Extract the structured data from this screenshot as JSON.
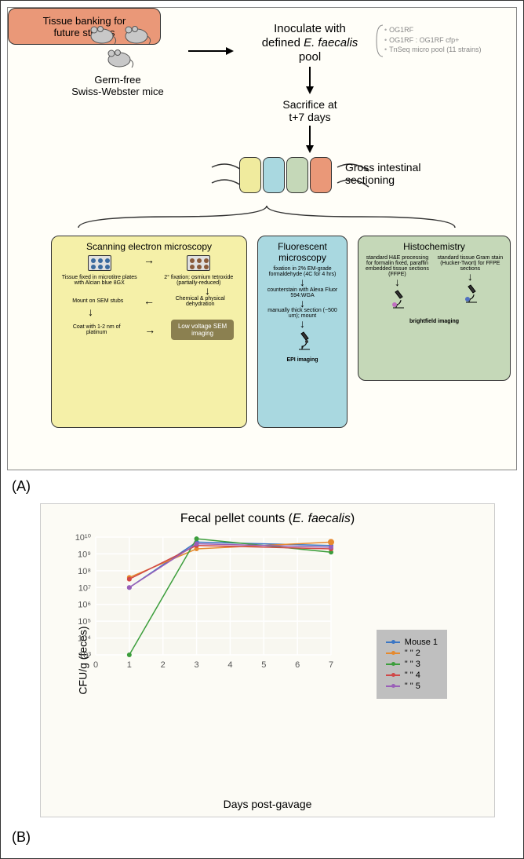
{
  "panelA": {
    "label": "(A)",
    "mice_label": "Germ-free\nSwiss-Webster mice",
    "inoculate": "Inoculate with\ndefined E. faecalis\npool",
    "italic_part": "E. faecalis",
    "pool_options": [
      "OG1RF",
      "OG1RF : OG1RF cfp+",
      "TnSeq micro pool (11 strains)"
    ],
    "sacrifice": "Sacrifice at\nt+7 days",
    "sectioning": "Gross intestinal\nsectioning",
    "section_colors": [
      "#f0eb9e",
      "#a9d8e0",
      "#c5d8b8",
      "#ea9878"
    ],
    "sem": {
      "title": "Scanning electron microscopy",
      "step1": "Tissue fixed in microtitre plates with Alcian blue 8GX",
      "step2": "2° fixation: osmium tetroxide (partially-reduced)",
      "step3": "Chemical & physical dehydration",
      "step4": "Mount on SEM stubs",
      "step5": "Coat with 1-2 nm of platinum",
      "result": "Low voltage SEM imaging",
      "plate_dot_colors": [
        "#3a6a9e",
        "#8a5a3a"
      ]
    },
    "fluor": {
      "title": "Fluorescent microscopy",
      "step1": "fixation in 2% EM-grade formaldehyde (4C for 4 hrs)",
      "step2": "counterstain with Alexa Fluor 594:WGA",
      "step3": "manually thick section (~500 um); mount",
      "result": "EPI imaging"
    },
    "histo": {
      "title": "Histochemistry",
      "col1": "standard H&E processing for formalin fixed, paraffin embedded tissue sections (FFPE)",
      "col2": "standard tissue Gram stain (Hucker-Twort) for FFPE sections",
      "result": "brightfield imaging",
      "scope_dots": [
        "#c070c0",
        "#5070c0"
      ]
    },
    "banking": "Tissue banking for\nfuture studies"
  },
  "panelB": {
    "label": "(B)",
    "chart": {
      "type": "line",
      "title": "Fecal pellet counts (E. faecalis)",
      "title_italic": "E. faecalis",
      "x_label": "Days post-gavage",
      "y_label": "CFU/g (feces)",
      "xlim": [
        0,
        7
      ],
      "xticks": [
        0,
        1,
        2,
        3,
        4,
        5,
        6,
        7
      ],
      "ylim_log": [
        3,
        10
      ],
      "yticks_log": [
        3,
        4,
        5,
        6,
        7,
        8,
        9,
        10
      ],
      "ytick_labels": [
        "10³",
        "10⁴",
        "10⁵",
        "10⁶",
        "10⁷",
        "10⁸",
        "10⁹",
        "10¹⁰"
      ],
      "background_color": "#f8f7f0",
      "grid_color": "#ffffff",
      "series": [
        {
          "name": "Mouse 1",
          "color": "#3b76c4",
          "x": [
            1,
            3,
            7
          ],
          "y_log": [
            7.0,
            9.7,
            9.5
          ]
        },
        {
          "name": "\"   \"   2",
          "color": "#e68a2e",
          "x": [
            1,
            3,
            7
          ],
          "y_log": [
            7.6,
            9.3,
            9.7
          ],
          "end_marker": true
        },
        {
          "name": "\"   \"   3",
          "color": "#3c9e3c",
          "x": [
            1,
            3,
            7
          ],
          "y_log": [
            3.0,
            9.9,
            9.1
          ]
        },
        {
          "name": "\"   \"   4",
          "color": "#d04848",
          "x": [
            1,
            3,
            7
          ],
          "y_log": [
            7.5,
            9.5,
            9.3
          ]
        },
        {
          "name": "\"   \"   5",
          "color": "#9a5fb8",
          "x": [
            1,
            3,
            7
          ],
          "y_log": [
            7.0,
            9.6,
            9.4
          ]
        }
      ],
      "legend_header": "Mouse 1",
      "line_width": 1.5,
      "marker_size": 4
    }
  }
}
